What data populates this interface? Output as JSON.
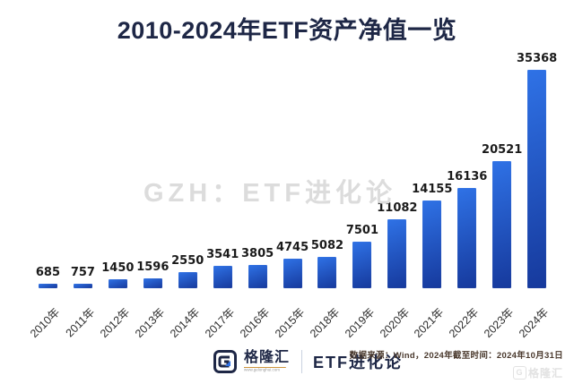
{
  "title": "2010-2024年ETF资产净值一览",
  "watermark": "GZH：ETF进化论",
  "chart_data": {
    "type": "bar",
    "categories": [
      "2010年",
      "2011年",
      "2012年",
      "2013年",
      "2014年",
      "2017年",
      "2016年",
      "2015年",
      "2018年",
      "2019年",
      "2020年",
      "2021年",
      "2022年",
      "2023年",
      "2024年"
    ],
    "values": [
      685,
      757,
      1450,
      1596,
      2550,
      3541,
      3805,
      4745,
      5082,
      7501,
      11082,
      14155,
      16136,
      20521,
      35368
    ],
    "title": "2010-2024年ETF资产净值一览",
    "xlabel": "",
    "ylabel": "",
    "ylim": [
      0,
      36000
    ],
    "grid": false,
    "legend": "none",
    "value_labels": true,
    "bar_color_top": "#2f72e6",
    "bar_color_bottom": "#16399c"
  },
  "footer": {
    "logo_text": "格隆汇",
    "logo_sub": "www.gelonghui.com",
    "brand": "ETF进化论",
    "source_note": "数据来源：Wind，2024年截至时间：2024年10月31日",
    "corner_watermark_letter": "G",
    "corner_watermark": "格隆汇"
  },
  "colors": {
    "title": "#1e2746",
    "watermark": "#dcdcdc",
    "value_label": "#1b1b1b",
    "axis_label": "#2e2e2e",
    "footer_brand": "#1e2746",
    "source_note": "#4a392d",
    "background": "#ffffff"
  }
}
